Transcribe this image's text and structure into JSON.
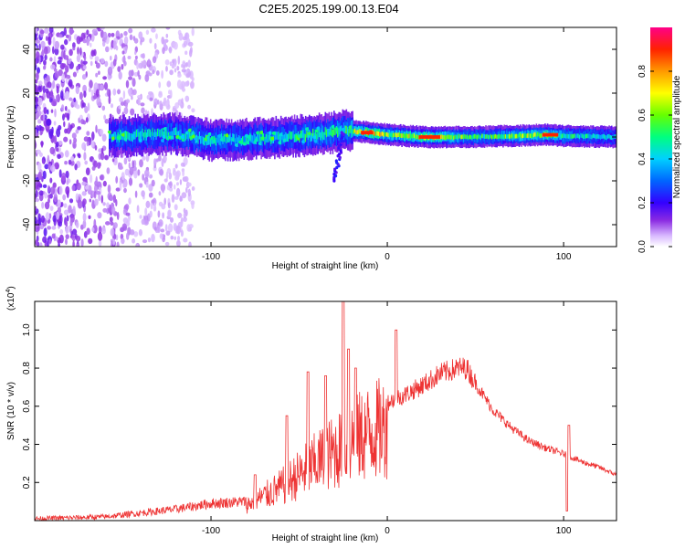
{
  "title": "C2E5.2025.199.00.13.E04",
  "chart_data": [
    {
      "type": "heatmap",
      "xlabel": "Height of straight line (km)",
      "ylabel": "Frequency (Hz)",
      "xlim": [
        -200,
        130
      ],
      "ylim": [
        -50,
        50
      ],
      "x_ticks": [
        -100,
        0,
        100
      ],
      "x_tick_labels": [
        "-100",
        "0",
        "100"
      ],
      "y_ticks": [
        -40,
        -20,
        0,
        20,
        40
      ],
      "y_tick_labels": [
        "-40",
        "-20",
        "0",
        "20",
        "40"
      ],
      "colorbar": {
        "label": "Normalized spectral amplitude",
        "range": [
          0,
          1
        ],
        "ticks": [
          0.0,
          0.2,
          0.4,
          0.6,
          0.8
        ],
        "tick_labels": [
          "0.0",
          "0.2",
          "0.4",
          "0.6",
          "0.8"
        ]
      },
      "ridge": [
        {
          "x": -150,
          "y": 0.5,
          "amp": 0.45
        },
        {
          "x": -120,
          "y": 1.5,
          "amp": 0.45
        },
        {
          "x": -100,
          "y": -1.5,
          "amp": 0.45
        },
        {
          "x": -80,
          "y": -1.0,
          "amp": 0.45
        },
        {
          "x": -60,
          "y": 0.0,
          "amp": 0.45
        },
        {
          "x": -40,
          "y": 1.0,
          "amp": 0.5
        },
        {
          "x": -25,
          "y": 3.0,
          "amp": 0.5
        },
        {
          "x": -10,
          "y": 2.0,
          "amp": 0.85
        },
        {
          "x": 0,
          "y": 1.0,
          "amp": 0.6
        },
        {
          "x": 20,
          "y": 0.0,
          "amp": 0.75
        },
        {
          "x": 50,
          "y": 0.0,
          "amp": 0.5
        },
        {
          "x": 90,
          "y": 1.0,
          "amp": 0.7
        },
        {
          "x": 100,
          "y": 0.5,
          "amp": 0.5
        },
        {
          "x": 130,
          "y": 0.0,
          "amp": 0.4
        }
      ],
      "tail_feature": {
        "x": [
          -30,
          -25
        ],
        "y": [
          -20,
          2
        ]
      },
      "noise_region_x": [
        -200,
        -125
      ]
    },
    {
      "type": "line",
      "xlabel": "Height of straight line (km)",
      "ylabel": "SNR (10 * v/v)",
      "y_scale_label": "(x10",
      "y_scale_exponent": "4",
      "y_scale_close": ")",
      "xlim": [
        -200,
        130
      ],
      "ylim": [
        0,
        1.15
      ],
      "x_ticks": [
        -100,
        0,
        100
      ],
      "x_tick_labels": [
        "-100",
        "0",
        "100"
      ],
      "y_ticks": [
        0.2,
        0.4,
        0.6,
        0.8,
        1.0
      ],
      "y_tick_labels": [
        "0.2",
        "0.4",
        "0.6",
        "0.8",
        "1.0"
      ],
      "color": "#ee3333",
      "envelope": [
        {
          "x": -200,
          "y": 0.01
        },
        {
          "x": -160,
          "y": 0.02
        },
        {
          "x": -140,
          "y": 0.04
        },
        {
          "x": -120,
          "y": 0.06
        },
        {
          "x": -100,
          "y": 0.09
        },
        {
          "x": -80,
          "y": 0.1
        },
        {
          "x": -70,
          "y": 0.16
        },
        {
          "x": -60,
          "y": 0.22
        },
        {
          "x": -50,
          "y": 0.3
        },
        {
          "x": -40,
          "y": 0.38
        },
        {
          "x": -30,
          "y": 0.45
        },
        {
          "x": -20,
          "y": 0.52
        },
        {
          "x": -10,
          "y": 0.58
        },
        {
          "x": 0,
          "y": 0.62
        },
        {
          "x": 10,
          "y": 0.66
        },
        {
          "x": 20,
          "y": 0.71
        },
        {
          "x": 30,
          "y": 0.77
        },
        {
          "x": 40,
          "y": 0.8
        },
        {
          "x": 45,
          "y": 0.8
        },
        {
          "x": 50,
          "y": 0.72
        },
        {
          "x": 60,
          "y": 0.58
        },
        {
          "x": 70,
          "y": 0.49
        },
        {
          "x": 80,
          "y": 0.42
        },
        {
          "x": 90,
          "y": 0.38
        },
        {
          "x": 100,
          "y": 0.35
        },
        {
          "x": 110,
          "y": 0.31
        },
        {
          "x": 120,
          "y": 0.28
        },
        {
          "x": 130,
          "y": 0.24
        }
      ],
      "spikes": [
        {
          "x": -75,
          "y": 0.24
        },
        {
          "x": -57,
          "y": 0.55
        },
        {
          "x": -45,
          "y": 0.78
        },
        {
          "x": -35,
          "y": 0.76
        },
        {
          "x": -25,
          "y": 1.15
        },
        {
          "x": -22,
          "y": 0.9
        },
        {
          "x": -18,
          "y": 0.8
        },
        {
          "x": 5,
          "y": 1.0
        },
        {
          "x": 102,
          "y": 0.05
        },
        {
          "x": 103,
          "y": 0.5
        }
      ]
    }
  ]
}
